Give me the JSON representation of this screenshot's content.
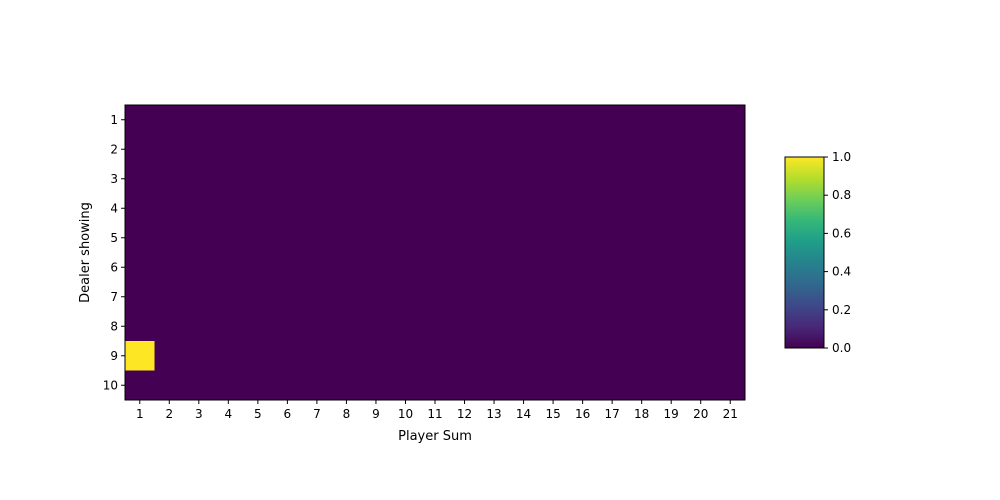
{
  "chart_data": {
    "type": "heatmap",
    "title": "",
    "xlabel": "Player Sum",
    "ylabel": "Dealer showing",
    "x_categories": [
      "1",
      "2",
      "3",
      "4",
      "5",
      "6",
      "7",
      "8",
      "9",
      "10",
      "11",
      "12",
      "13",
      "14",
      "15",
      "16",
      "17",
      "18",
      "19",
      "20",
      "21"
    ],
    "y_categories": [
      "1",
      "2",
      "3",
      "4",
      "5",
      "6",
      "7",
      "8",
      "9",
      "10"
    ],
    "values": [
      [
        0,
        0,
        0,
        0,
        0,
        0,
        0,
        0,
        0,
        0,
        0,
        0,
        0,
        0,
        0,
        0,
        0,
        0,
        0,
        0,
        0
      ],
      [
        0,
        0,
        0,
        0,
        0,
        0,
        0,
        0,
        0,
        0,
        0,
        0,
        0,
        0,
        0,
        0,
        0,
        0,
        0,
        0,
        0
      ],
      [
        0,
        0,
        0,
        0,
        0,
        0,
        0,
        0,
        0,
        0,
        0,
        0,
        0,
        0,
        0,
        0,
        0,
        0,
        0,
        0,
        0
      ],
      [
        0,
        0,
        0,
        0,
        0,
        0,
        0,
        0,
        0,
        0,
        0,
        0,
        0,
        0,
        0,
        0,
        0,
        0,
        0,
        0,
        0
      ],
      [
        0,
        0,
        0,
        0,
        0,
        0,
        0,
        0,
        0,
        0,
        0,
        0,
        0,
        0,
        0,
        0,
        0,
        0,
        0,
        0,
        0
      ],
      [
        0,
        0,
        0,
        0,
        0,
        0,
        0,
        0,
        0,
        0,
        0,
        0,
        0,
        0,
        0,
        0,
        0,
        0,
        0,
        0,
        0
      ],
      [
        0,
        0,
        0,
        0,
        0,
        0,
        0,
        0,
        0,
        0,
        0,
        0,
        0,
        0,
        0,
        0,
        0,
        0,
        0,
        0,
        0
      ],
      [
        0,
        0,
        0,
        0,
        0,
        0,
        0,
        0,
        0,
        0,
        0,
        0,
        0,
        0,
        0,
        0,
        0,
        0,
        0,
        0,
        0
      ],
      [
        1,
        0,
        0,
        0,
        0,
        0,
        0,
        0,
        0,
        0,
        0,
        0,
        0,
        0,
        0,
        0,
        0,
        0,
        0,
        0,
        0
      ],
      [
        0,
        0,
        0,
        0,
        0,
        0,
        0,
        0,
        0,
        0,
        0,
        0,
        0,
        0,
        0,
        0,
        0,
        0,
        0,
        0,
        0
      ]
    ],
    "colormap": "viridis",
    "vmin": 0,
    "vmax": 1,
    "colorbar": {
      "ticks": [
        "0.0",
        "0.2",
        "0.4",
        "0.6",
        "0.8",
        "1.0"
      ],
      "tick_values": [
        0,
        0.2,
        0.4,
        0.6,
        0.8,
        1.0
      ],
      "placement": "right"
    },
    "grid": false
  }
}
